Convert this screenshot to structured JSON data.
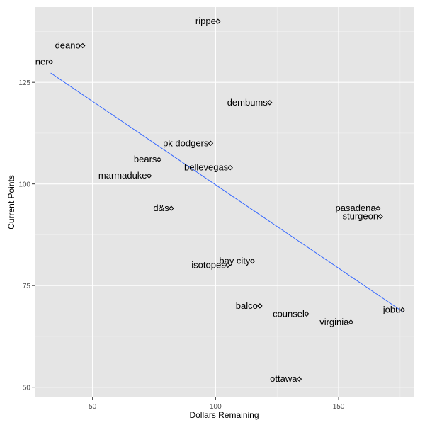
{
  "chart_data": {
    "type": "scatter",
    "xlabel": "Dollars Remaining",
    "ylabel": "Current Points",
    "xlim": [
      26.5,
      180.5
    ],
    "ylim": [
      47.5,
      143.5
    ],
    "x_ticks": [
      50,
      100,
      150
    ],
    "y_ticks": [
      50,
      75,
      100,
      125
    ],
    "grid": true,
    "legend": "none",
    "background_color": "#e5e5e5",
    "grid_color": "#ffffff",
    "point_color": "#000000",
    "trend_color": "#3366ff",
    "trend_line": {
      "x": [
        33,
        176
      ],
      "y": [
        127.3,
        68.6
      ]
    },
    "points": [
      {
        "label": "rippe",
        "x": 101,
        "y": 140
      },
      {
        "label": "deano",
        "x": 46,
        "y": 134
      },
      {
        "label": "ner",
        "x": 33,
        "y": 130
      },
      {
        "label": "dembums",
        "x": 122,
        "y": 120
      },
      {
        "label": "pk dodgers",
        "x": 98,
        "y": 110
      },
      {
        "label": "bears",
        "x": 77,
        "y": 106
      },
      {
        "label": "bellevegas",
        "x": 106,
        "y": 104
      },
      {
        "label": "marmaduke",
        "x": 73,
        "y": 102
      },
      {
        "label": "d&s",
        "x": 82,
        "y": 94
      },
      {
        "label": "pasadena",
        "x": 166,
        "y": 94
      },
      {
        "label": "sturgeon",
        "x": 167,
        "y": 92
      },
      {
        "label": "bay city",
        "x": 115,
        "y": 81
      },
      {
        "label": "isotopes",
        "x": 105,
        "y": 80
      },
      {
        "label": "balco",
        "x": 118,
        "y": 70
      },
      {
        "label": "jobu",
        "x": 176,
        "y": 69
      },
      {
        "label": "counsel",
        "x": 137,
        "y": 68
      },
      {
        "label": "virginia",
        "x": 155,
        "y": 66
      },
      {
        "label": "ottawa",
        "x": 134,
        "y": 52
      }
    ]
  }
}
